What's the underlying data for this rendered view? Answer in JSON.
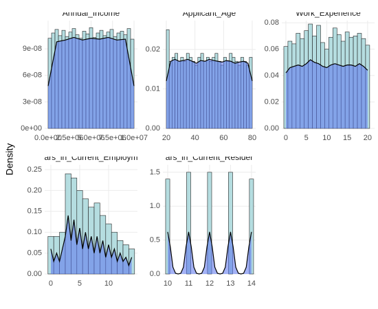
{
  "ylabel": "Density",
  "chart_data": [
    {
      "type": "histogram",
      "title": "Annual_Income",
      "color": "#b5dde0",
      "density_color": "#5a73ee",
      "grid": true,
      "bins": [
        0,
        400000,
        800000,
        1200000,
        1600000,
        2000000,
        2400000,
        2800000,
        3200000,
        3600000,
        4000000,
        4400000,
        4800000,
        5200000,
        5600000,
        6000000,
        6400000,
        6800000,
        7200000,
        7600000,
        8000000,
        8400000,
        8800000,
        9200000,
        9600000,
        10000000
      ],
      "counts": [
        1.02e-07,
        1.08e-07,
        1.12e-07,
        1.05e-07,
        1.11e-07,
        1.04e-07,
        1.09e-07,
        1.13e-07,
        1.06e-07,
        1.02e-07,
        1.1e-07,
        1.07e-07,
        1.14e-07,
        1.03e-07,
        1.08e-07,
        1.11e-07,
        1.05e-07,
        1.09e-07,
        1.12e-07,
        1.04e-07,
        1.08e-07,
        1.1e-07,
        1.06e-07,
        1.13e-07,
        1.01e-07
      ],
      "density_x": [
        0,
        1000000,
        2000000,
        3000000,
        4000000,
        5000000,
        6000000,
        7000000,
        8000000,
        9000000,
        10000000
      ],
      "density": [
        4.8e-08,
        9.8e-08,
        1e-07,
        1.03e-07,
        1e-07,
        1.02e-07,
        1.01e-07,
        1.03e-07,
        1e-07,
        1.01e-07,
        4.8e-08
      ],
      "xlim": [
        -400000,
        10400000
      ],
      "ylim": [
        0,
        1.22e-07
      ],
      "xticks": [
        {
          "value": 0,
          "label": "0.0e+00"
        },
        {
          "value": 2500000,
          "label": "2.5e+06"
        },
        {
          "value": 5000000,
          "label": "5.0e+06"
        },
        {
          "value": 7500000,
          "label": "7.5e+06"
        },
        {
          "value": 10000000,
          "label": "1.0e+07"
        }
      ],
      "yticks": [
        {
          "value": 0,
          "label": "0e+00"
        },
        {
          "value": 3e-08,
          "label": "3e-08"
        },
        {
          "value": 6e-08,
          "label": "6e-08"
        },
        {
          "value": 9e-08,
          "label": "9e-08"
        }
      ]
    },
    {
      "type": "histogram",
      "title": "Applicant_Age",
      "color": "#b5dde0",
      "density_color": "#5a73ee",
      "grid": true,
      "bins": [
        20,
        22,
        24,
        26,
        28,
        30,
        32,
        34,
        36,
        38,
        40,
        42,
        44,
        46,
        48,
        50,
        52,
        54,
        56,
        58,
        60,
        62,
        64,
        66,
        68,
        70,
        72,
        74,
        76,
        78,
        80
      ],
      "counts": [
        0.025,
        0.017,
        0.018,
        0.019,
        0.017,
        0.018,
        0.017,
        0.019,
        0.018,
        0.017,
        0.016,
        0.018,
        0.019,
        0.017,
        0.018,
        0.017,
        0.018,
        0.019,
        0.017,
        0.016,
        0.018,
        0.017,
        0.019,
        0.018,
        0.017,
        0.016,
        0.018,
        0.017,
        0.016,
        0.018
      ],
      "density_x": [
        20,
        23,
        26,
        29,
        32,
        35,
        38,
        41,
        44,
        47,
        50,
        53,
        56,
        59,
        62,
        65,
        68,
        71,
        74,
        77,
        80
      ],
      "density": [
        0.012,
        0.017,
        0.0175,
        0.017,
        0.0172,
        0.0175,
        0.017,
        0.0165,
        0.0172,
        0.017,
        0.0175,
        0.0172,
        0.017,
        0.0168,
        0.0172,
        0.017,
        0.0165,
        0.0168,
        0.017,
        0.0165,
        0.012
      ],
      "xlim": [
        17.6,
        82.4
      ],
      "ylim": [
        0,
        0.0273
      ],
      "xticks": [
        20,
        40,
        60,
        80
      ],
      "yticks": [
        {
          "value": 0,
          "label": "0.00"
        },
        0.01,
        0.02
      ]
    },
    {
      "type": "histogram",
      "title": "Work_Experience",
      "color": "#b5dde0",
      "density_color": "#5a73ee",
      "grid": true,
      "bins": [
        -0.5,
        0.5,
        1.5,
        2.5,
        3.5,
        4.5,
        5.5,
        6.5,
        7.5,
        8.5,
        9.5,
        10.5,
        11.5,
        12.5,
        13.5,
        14.5,
        15.5,
        16.5,
        17.5,
        18.5,
        19.5,
        20.5
      ],
      "counts": [
        0.062,
        0.066,
        0.064,
        0.072,
        0.068,
        0.074,
        0.079,
        0.07,
        0.078,
        0.065,
        0.06,
        0.069,
        0.076,
        0.071,
        0.066,
        0.073,
        0.069,
        0.07,
        0.072,
        0.068,
        0.063
      ],
      "density_x": [
        0,
        1,
        2,
        3,
        4,
        5,
        6,
        7,
        8,
        9,
        10,
        11,
        12,
        13,
        14,
        15,
        16,
        17,
        18,
        19,
        20
      ],
      "density": [
        0.042,
        0.046,
        0.047,
        0.048,
        0.047,
        0.049,
        0.052,
        0.05,
        0.049,
        0.047,
        0.046,
        0.048,
        0.049,
        0.048,
        0.047,
        0.048,
        0.048,
        0.047,
        0.049,
        0.047,
        0.044
      ],
      "xlim": [
        -1,
        21.7
      ],
      "ylim": [
        0,
        0.0816
      ],
      "xticks": [
        0,
        5,
        10,
        15,
        20
      ],
      "yticks": [
        {
          "value": 0,
          "label": "0.00"
        },
        0.02,
        0.04,
        0.06,
        0.08
      ]
    },
    {
      "type": "histogram",
      "title": "ars_in_Current_Employm",
      "color": "#b5dde0",
      "density_color": "#5a73ee",
      "grid": true,
      "bins": [
        -0.5,
        0.5,
        1.5,
        2.5,
        3.5,
        4.5,
        5.5,
        6.5,
        7.5,
        8.5,
        9.5,
        10.5,
        11.5,
        12.5,
        13.5,
        14.5
      ],
      "counts": [
        0.09,
        0.09,
        0.1,
        0.24,
        0.23,
        0.2,
        0.18,
        0.16,
        0.17,
        0.14,
        0.12,
        0.1,
        0.08,
        0.07,
        0.06
      ],
      "density_x": [
        0,
        0.5,
        1,
        1.5,
        2,
        2.5,
        3,
        3.5,
        4,
        4.5,
        5,
        5.5,
        6,
        6.5,
        7,
        7.5,
        8,
        8.5,
        9,
        9.5,
        10,
        10.5,
        11,
        11.5,
        12,
        12.5,
        13,
        13.5,
        14
      ],
      "density": [
        0.06,
        0.03,
        0.05,
        0.03,
        0.06,
        0.09,
        0.14,
        0.08,
        0.13,
        0.07,
        0.11,
        0.06,
        0.1,
        0.06,
        0.09,
        0.05,
        0.09,
        0.05,
        0.08,
        0.04,
        0.07,
        0.04,
        0.06,
        0.03,
        0.05,
        0.03,
        0.04,
        0.02,
        0.04
      ],
      "xlim": [
        -1.07,
        15.0
      ],
      "ylim": [
        0,
        0.2615
      ],
      "xticks": [
        0,
        5,
        10
      ],
      "yticks": [
        {
          "value": 0,
          "label": "0.00"
        },
        0.05,
        {
          "value": 0.1,
          "label": "0.10"
        },
        0.15,
        {
          "value": 0.2,
          "label": "0.20"
        },
        0.25
      ]
    },
    {
      "type": "histogram",
      "title": "ars_in_Current_Resider",
      "color": "#b5dde0",
      "density_color": "#5a73ee",
      "grid": true,
      "bins": [
        9.9,
        10.1,
        10.3,
        10.5,
        10.7,
        10.9,
        11.1,
        11.3,
        11.5,
        11.7,
        11.9,
        12.1,
        12.3,
        12.5,
        12.7,
        12.9,
        13.1,
        13.3,
        13.5,
        13.7,
        13.9,
        14.1
      ],
      "counts": [
        1.4,
        0,
        0,
        0,
        0,
        1.5,
        0,
        0,
        0,
        0,
        1.5,
        0,
        0,
        0,
        0,
        1.5,
        0,
        0,
        0,
        0,
        1.4
      ],
      "density_x": [
        10,
        10.125,
        10.25,
        10.375,
        10.5,
        10.625,
        10.75,
        10.875,
        11,
        11.125,
        11.25,
        11.375,
        11.5,
        11.625,
        11.75,
        11.875,
        12,
        12.125,
        12.25,
        12.375,
        12.5,
        12.625,
        12.75,
        12.875,
        13,
        13.125,
        13.25,
        13.375,
        13.5,
        13.625,
        13.75,
        13.875,
        14
      ],
      "density": [
        0.62,
        0.4,
        0.1,
        0.01,
        0,
        0.01,
        0.1,
        0.4,
        0.62,
        0.4,
        0.1,
        0.01,
        0,
        0.01,
        0.1,
        0.4,
        0.62,
        0.4,
        0.1,
        0.01,
        0,
        0.01,
        0.1,
        0.4,
        0.62,
        0.4,
        0.1,
        0.01,
        0,
        0.01,
        0.1,
        0.4,
        0.62
      ],
      "xlim": [
        9.77,
        14.2
      ],
      "ylim": [
        0,
        1.61
      ],
      "xticks": [
        10,
        11,
        12,
        13,
        14
      ],
      "yticks": [
        {
          "value": 0,
          "label": "0.0"
        },
        0.5,
        {
          "value": 1,
          "label": "1.0"
        },
        {
          "value": 1.5,
          "label": "1.5"
        }
      ]
    }
  ]
}
